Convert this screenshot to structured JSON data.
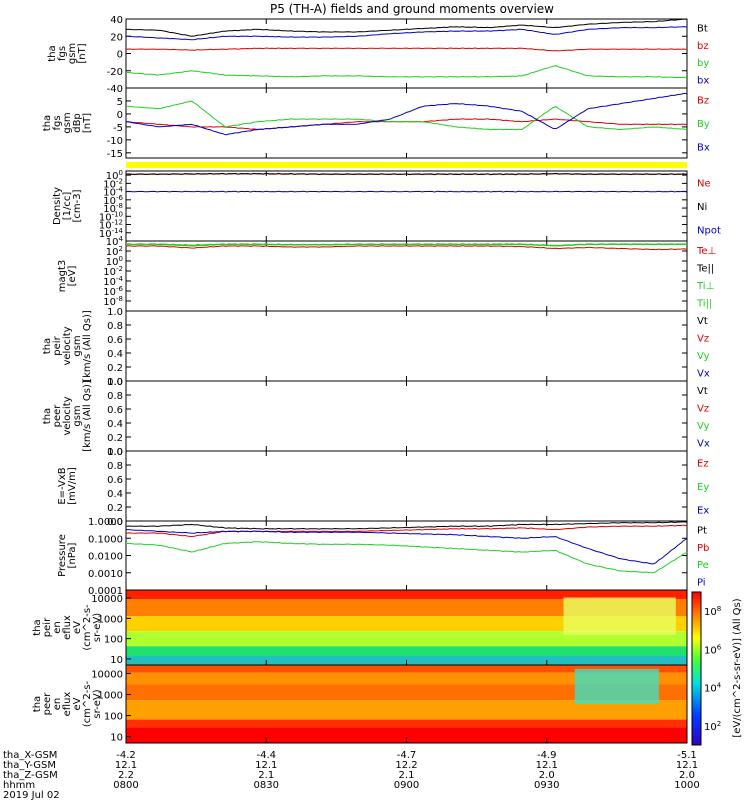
{
  "title": "P5 (TH-A) fields and ground moments overview",
  "colors": {
    "black": "#000000",
    "red": "#dd0000",
    "green": "#22cc22",
    "blue": "#0000cc",
    "yellow": "#ffff00"
  },
  "chart_data": [
    {
      "type": "line",
      "id": "fgs1",
      "ylabels": [
        "tha",
        "fgs",
        "gsm",
        "[nT]"
      ],
      "ylim": [
        -40,
        40
      ],
      "yticks": [
        "40",
        "20",
        "0",
        "-20",
        "-40"
      ],
      "legend": [
        {
          "name": "Bt",
          "color": "black"
        },
        {
          "name": "bz",
          "color": "red"
        },
        {
          "name": "by",
          "color": "green"
        },
        {
          "name": "bx",
          "color": "blue"
        }
      ],
      "series": [
        {
          "name": "Bt",
          "values": [
            28,
            27,
            20,
            26,
            28,
            26,
            25,
            25,
            27,
            29,
            31,
            30,
            33,
            30,
            34,
            36,
            37,
            40
          ]
        },
        {
          "name": "bz",
          "values": [
            5,
            5,
            4,
            5,
            6,
            6,
            6,
            6,
            6,
            6,
            6,
            6,
            6,
            3,
            5,
            5,
            5,
            5
          ]
        },
        {
          "name": "by",
          "values": [
            -22,
            -25,
            -20,
            -25,
            -26,
            -27,
            -26,
            -26,
            -27,
            -27,
            -27,
            -27,
            -26,
            -14,
            -26,
            -27,
            -27,
            -28
          ]
        },
        {
          "name": "bx",
          "values": [
            20,
            18,
            16,
            20,
            20,
            19,
            19,
            20,
            23,
            25,
            26,
            26,
            28,
            22,
            28,
            30,
            30,
            31
          ]
        }
      ]
    },
    {
      "type": "line",
      "id": "fgs2",
      "ylabels": [
        "tha",
        "fgs",
        "gsm",
        "dBp",
        "[nT]"
      ],
      "ylim": [
        -17,
        10
      ],
      "yticks": [
        "5",
        "0",
        "-5",
        "-10",
        "-15"
      ],
      "legend": [
        {
          "name": "Bz",
          "color": "red"
        },
        {
          "name": "By",
          "color": "green"
        },
        {
          "name": "Bx",
          "color": "blue"
        }
      ],
      "series": [
        {
          "name": "Bz",
          "values": [
            -3,
            -4,
            -5,
            -5,
            -6,
            -5,
            -4,
            -3,
            -3,
            -3,
            -2,
            -2,
            -3,
            -2,
            -3,
            -4,
            -4,
            -4
          ]
        },
        {
          "name": "By",
          "values": [
            3,
            2,
            5,
            -5,
            -3,
            -2,
            -2,
            -2,
            -3,
            -3,
            -5,
            -6,
            -6,
            3,
            -5,
            -6,
            -5,
            -6
          ]
        },
        {
          "name": "Bx",
          "values": [
            -3,
            -5,
            -4,
            -8,
            -6,
            -5,
            -4,
            -4,
            -2,
            3,
            4,
            3,
            1,
            -6,
            2,
            4,
            6,
            8
          ]
        }
      ]
    },
    {
      "type": "line",
      "id": "density",
      "ylabels": [
        "Density",
        "[1/cc]",
        "[cm-3]"
      ],
      "log": true,
      "ylim": [
        -16,
        1
      ],
      "yticks": [
        "10^0",
        "10^-2",
        "10^-4",
        "10^-6",
        "10^-8",
        "10^-10",
        "10^-12",
        "10^-14"
      ],
      "legend": [
        {
          "name": "Ne",
          "color": "red"
        },
        {
          "name": "Ni",
          "color": "black"
        },
        {
          "name": "Npot",
          "color": "blue"
        }
      ],
      "series": [
        {
          "name": "Ne",
          "values": [
            0.2,
            0.2,
            0.25,
            0.3,
            0.3,
            0.25,
            0.2,
            0.2,
            0.2,
            0.2,
            0.2,
            0.2,
            0.2,
            0.3,
            0.2,
            0.2,
            0.2,
            0.2
          ]
        },
        {
          "name": "Ni",
          "values": [
            0.25,
            0.25,
            0.3,
            0.35,
            0.35,
            0.3,
            0.25,
            0.25,
            0.25,
            0.25,
            0.25,
            0.25,
            0.25,
            0.35,
            0.25,
            0.25,
            0.25,
            0.25
          ]
        },
        {
          "name": "Npot",
          "values": [
            -4,
            -4,
            -4,
            -4,
            -4,
            -4,
            -4,
            -4,
            -4,
            -4,
            -4,
            -4,
            -4,
            -4,
            -4,
            -4,
            -4,
            -4
          ]
        }
      ]
    },
    {
      "type": "line",
      "id": "temp",
      "ylabels": [
        "magt3",
        "[eV]"
      ],
      "log": true,
      "ylim": [
        -10,
        4
      ],
      "yticks": [
        "10^4",
        "10^2",
        "10^0",
        "10^-2",
        "10^-4",
        "10^-6",
        "10^-8"
      ],
      "legend": [
        {
          "name": "Te⊥",
          "color": "red"
        },
        {
          "name": "Te||",
          "color": "black"
        },
        {
          "name": "Ti⊥",
          "color": "green"
        },
        {
          "name": "Ti||",
          "color": "green"
        }
      ],
      "series": [
        {
          "name": "Te⊥",
          "values": [
            3,
            3,
            2.6,
            3,
            3,
            2.8,
            2.8,
            3,
            3,
            3,
            3,
            3,
            2.9,
            2.5,
            2.7,
            2.5,
            2.3,
            2.4
          ]
        },
        {
          "name": "Ti⊥",
          "values": [
            3.3,
            3.3,
            3,
            3.3,
            3.3,
            3.2,
            3.2,
            3.3,
            3.3,
            3.3,
            3.3,
            3.3,
            3.3,
            3,
            3.3,
            3.3,
            3.3,
            3.3
          ]
        },
        {
          "name": "Ti||",
          "values": [
            3.4,
            3.4,
            3.2,
            3.4,
            3.4,
            3.3,
            3.3,
            3.4,
            3.4,
            3.4,
            3.4,
            3.4,
            3.4,
            3.1,
            3.4,
            3.4,
            3.4,
            3.4
          ]
        }
      ]
    },
    {
      "type": "line",
      "id": "peir",
      "ylabels": [
        "tha",
        "peir",
        "velocity",
        "gsm",
        "[km/s (All Qs)]"
      ],
      "ylim": [
        0,
        1
      ],
      "yticks": [
        "1.0",
        "0.8",
        "0.6",
        "0.4",
        "0.2",
        "0.0"
      ],
      "legend": [
        {
          "name": "Vt",
          "color": "black"
        },
        {
          "name": "Vz",
          "color": "red"
        },
        {
          "name": "Vy",
          "color": "green"
        },
        {
          "name": "Vx",
          "color": "blue"
        }
      ],
      "series": []
    },
    {
      "type": "line",
      "id": "peer",
      "ylabels": [
        "tha",
        "peer",
        "velocity",
        "gsm",
        "[km/s (All Qs)]"
      ],
      "ylim": [
        0,
        1
      ],
      "yticks": [
        "1.0",
        "0.8",
        "0.6",
        "0.4",
        "0.2",
        "0.0"
      ],
      "legend": [
        {
          "name": "Vt",
          "color": "black"
        },
        {
          "name": "Vz",
          "color": "red"
        },
        {
          "name": "Vy",
          "color": "green"
        },
        {
          "name": "Vx",
          "color": "blue"
        }
      ],
      "series": []
    },
    {
      "type": "line",
      "id": "efield",
      "ylabels": [
        "E=-VxB",
        "[mV/m]"
      ],
      "ylim": [
        0,
        1
      ],
      "yticks": [
        "1.0",
        "0.8",
        "0.6",
        "0.4",
        "0.2",
        "0.0"
      ],
      "legend": [
        {
          "name": "Ez",
          "color": "red"
        },
        {
          "name": "Ey",
          "color": "green"
        },
        {
          "name": "Ex",
          "color": "blue"
        }
      ],
      "series": []
    },
    {
      "type": "line",
      "id": "pressure",
      "ylabels": [
        "Pressure",
        "[nPa]"
      ],
      "log": true,
      "ylim": [
        -4,
        0
      ],
      "yticks": [
        "1.0000",
        "0.1000",
        "0.0100",
        "0.0010",
        "0.0001"
      ],
      "legend": [
        {
          "name": "Pt",
          "color": "black"
        },
        {
          "name": "Pb",
          "color": "red"
        },
        {
          "name": "Pe",
          "color": "green"
        },
        {
          "name": "Pi",
          "color": "blue"
        }
      ],
      "series": [
        {
          "name": "Pt",
          "values": [
            -0.3,
            -0.3,
            -0.2,
            -0.4,
            -0.45,
            -0.45,
            -0.45,
            -0.45,
            -0.4,
            -0.35,
            -0.3,
            -0.3,
            -0.2,
            -0.2,
            -0.15,
            -0.1,
            -0.1,
            -0.05
          ]
        },
        {
          "name": "Pb",
          "values": [
            -0.7,
            -0.7,
            -0.9,
            -0.6,
            -0.6,
            -0.6,
            -0.6,
            -0.6,
            -0.55,
            -0.5,
            -0.45,
            -0.45,
            -0.4,
            -0.5,
            -0.35,
            -0.3,
            -0.3,
            -0.25
          ]
        },
        {
          "name": "Pe",
          "values": [
            -1.3,
            -1.4,
            -1.8,
            -1.3,
            -1.2,
            -1.3,
            -1.35,
            -1.35,
            -1.4,
            -1.5,
            -1.6,
            -1.7,
            -1.8,
            -1.7,
            -2.5,
            -2.9,
            -3.0,
            -1.8
          ]
        },
        {
          "name": "Pi",
          "values": [
            -0.5,
            -0.6,
            -0.7,
            -0.6,
            -0.6,
            -0.65,
            -0.65,
            -0.65,
            -0.7,
            -0.75,
            -0.8,
            -0.9,
            -1.0,
            -0.9,
            -1.6,
            -2.2,
            -2.5,
            -1.0
          ]
        }
      ]
    },
    {
      "type": "heatmap",
      "id": "peir_spec",
      "ylabels": [
        "tha",
        "peir",
        "en",
        "eflux",
        "eV",
        "(cm^2-s-",
        "sr-eV)"
      ],
      "log": true,
      "yticks": [
        "10000",
        "1000",
        "100",
        "10"
      ],
      "ylim": [
        5,
        25000
      ]
    },
    {
      "type": "heatmap",
      "id": "peer_spec",
      "ylabels": [
        "tha",
        "peer",
        "en",
        "eflux",
        "eV",
        "(cm^2-s-",
        "sr-eV)"
      ],
      "log": true,
      "yticks": [
        "10000",
        "1000",
        "100",
        "10"
      ],
      "ylim": [
        5,
        25000
      ]
    },
    {
      "type": "heatmap",
      "id": "colorbar",
      "ylabel": "[eV/(cm^2-s-sr-eV)] (All Qs)",
      "log": true,
      "clim": [
        2,
        8
      ],
      "ticks": [
        "10^8",
        "10^6",
        "10^4",
        "10^2"
      ]
    },
    {
      "type": "table",
      "id": "time_axis",
      "rows": [
        {
          "label": "tha_X-GSM",
          "values": [
            "-4.2",
            "-4.4",
            "-4.7",
            "-4.9",
            "-5.1"
          ]
        },
        {
          "label": "tha_Y-GSM",
          "values": [
            "12.1",
            "12.1",
            "12.2",
            "12.1",
            "12.1"
          ]
        },
        {
          "label": "tha_Z-GSM",
          "values": [
            "2.2",
            "2.1",
            "2.1",
            "2.0",
            "2.0"
          ]
        },
        {
          "label": "hhmm",
          "values": [
            "0800",
            "0830",
            "0900",
            "0930",
            "1000"
          ]
        }
      ],
      "date": "2019 Jul 02"
    }
  ]
}
